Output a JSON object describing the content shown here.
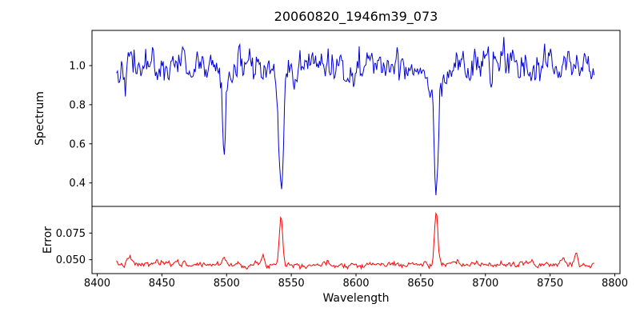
{
  "title": "20060820_1946m39_073",
  "x_axis": {
    "label": "Wavelength",
    "xlim": [
      8396,
      8804
    ],
    "ticks": [
      8400,
      8450,
      8500,
      8550,
      8600,
      8650,
      8700,
      8750,
      8800
    ],
    "tick_labels": [
      "8400",
      "8450",
      "8500",
      "8550",
      "8600",
      "8650",
      "8700",
      "8750",
      "8800"
    ]
  },
  "chart_data": [
    {
      "type": "line",
      "panel": "top",
      "series_name": "spectrum",
      "ylabel": "Spectrum",
      "color": "#0000dd",
      "ylim": [
        0.28,
        1.18
      ],
      "yticks": [
        0.4,
        0.6,
        0.8,
        1.0
      ],
      "ytick_labels": [
        "0.4",
        "0.6",
        "0.8",
        "1.0"
      ],
      "x_start": 8415,
      "x_end": 8784,
      "x_step": 0.75,
      "baseline": 1.0,
      "noise_sigma": 0.04,
      "noise_seed": 42,
      "smooth": 0.45,
      "absorption_lines": [
        {
          "center": 8498,
          "depth": 0.42,
          "sigma": 1.3,
          "wing_depth": 0.04,
          "wing_sigma": 4
        },
        {
          "center": 8542,
          "depth": 0.56,
          "sigma": 1.7,
          "wing_depth": 0.09,
          "wing_sigma": 7
        },
        {
          "center": 8662,
          "depth": 0.55,
          "sigma": 1.6,
          "wing_depth": 0.07,
          "wing_sigma": 6
        }
      ]
    },
    {
      "type": "line",
      "panel": "bottom",
      "series_name": "error",
      "ylabel": "Error",
      "color": "#ff0000",
      "ylim": [
        0.037,
        0.1
      ],
      "yticks": [
        0.05,
        0.075
      ],
      "ytick_labels": [
        "0.050",
        "0.075"
      ],
      "x_start": 8415,
      "x_end": 8784,
      "x_step": 0.75,
      "baseline": 0.0455,
      "noise_sigma": 0.0013,
      "noise_seed": 7,
      "smooth": 0.5,
      "emission_peaks": [
        {
          "center": 8425,
          "amp": 0.006,
          "sigma": 1.6
        },
        {
          "center": 8446,
          "amp": 0.004,
          "sigma": 1.2
        },
        {
          "center": 8462,
          "amp": 0.005,
          "sigma": 1.3
        },
        {
          "center": 8498,
          "amp": 0.008,
          "sigma": 1.4
        },
        {
          "center": 8528,
          "amp": 0.006,
          "sigma": 1.2
        },
        {
          "center": 8542,
          "amp": 0.047,
          "sigma": 1.3
        },
        {
          "center": 8662,
          "amp": 0.049,
          "sigma": 1.3
        },
        {
          "center": 8735,
          "amp": 0.004,
          "sigma": 1.2
        },
        {
          "center": 8760,
          "amp": 0.008,
          "sigma": 1.6
        },
        {
          "center": 8770,
          "amp": 0.011,
          "sigma": 1.3
        }
      ]
    }
  ]
}
